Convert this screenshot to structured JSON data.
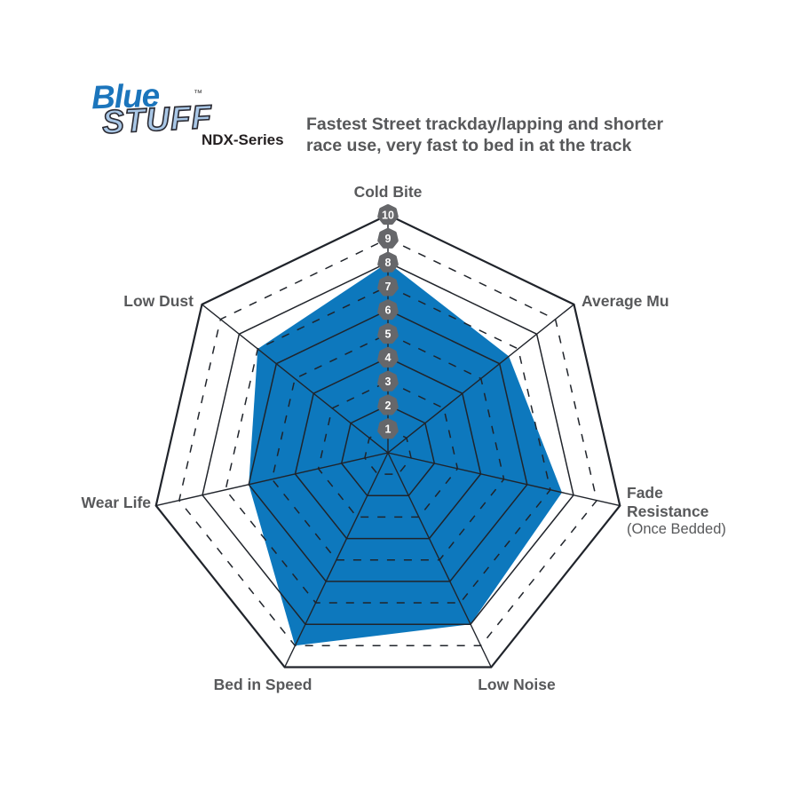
{
  "logo": {
    "word1": "Blue",
    "word2": "STUFF",
    "tm": "™",
    "series": "NDX-Series",
    "brand_blue": "#1b75bc",
    "light_blue": "#a9c7e6"
  },
  "header": {
    "line1": "Fastest Street trackday/lapping and shorter",
    "line2": "race use, very fast to bed in at the track"
  },
  "chart_data": {
    "type": "radar",
    "title": "BlueStuff NDX-Series brake pad performance ratings",
    "axes": [
      "Cold Bite",
      "Average Mu",
      "Fade Resistance (Once Bedded)",
      "Low Noise",
      "Bed in Speed",
      "Wear Life",
      "Low Dust"
    ],
    "series": [
      {
        "name": "BlueStuff NDX-Series",
        "values": [
          8,
          6.5,
          7.5,
          8,
          9,
          6,
          7
        ]
      }
    ],
    "scale": {
      "min": 0,
      "max": 10,
      "tick_labels": [
        "1",
        "2",
        "3",
        "4",
        "5",
        "6",
        "7",
        "8",
        "9",
        "10"
      ]
    },
    "rings": {
      "solid": [
        2,
        4,
        6,
        8,
        10
      ],
      "dashed": [
        1,
        3,
        5,
        7,
        9
      ]
    },
    "grid": true,
    "legend_position": "none",
    "fill_color": "#0d78bd",
    "grid_color": "#20242b",
    "badge_color": "#66676a",
    "label_color": "#58595b"
  },
  "labels": {
    "cold_bite": "Cold Bite",
    "average_mu": "Average Mu",
    "fade_line1": "Fade",
    "fade_line2": "Resistance",
    "fade_line3": "(Once Bedded)",
    "low_noise": "Low Noise",
    "bed_in_speed": "Bed in Speed",
    "wear_life": "Wear Life",
    "low_dust": "Low Dust"
  }
}
